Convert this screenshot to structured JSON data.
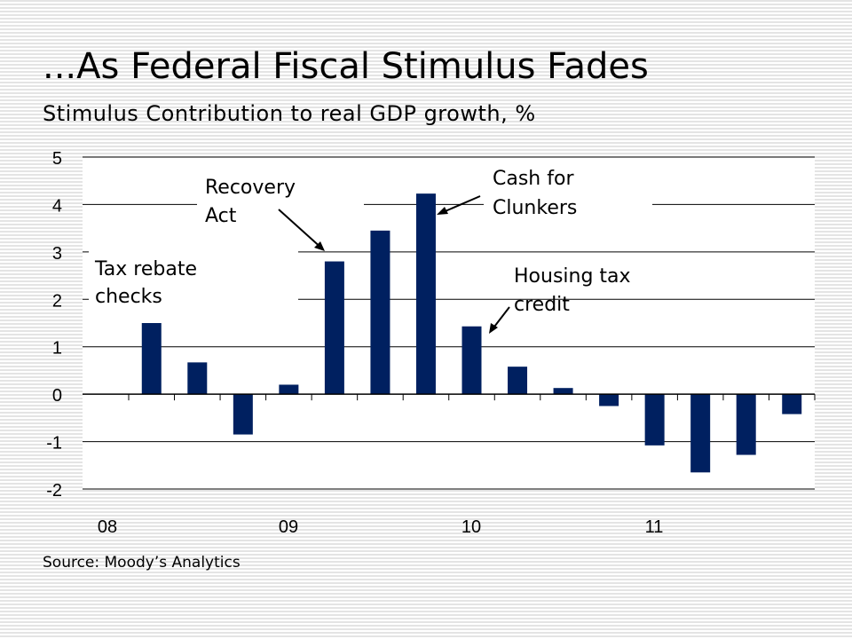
{
  "slide": {
    "title": "...As Federal Fiscal Stimulus Fades",
    "subtitle": "Stimulus Contribution to real GDP growth, %",
    "source": "Source: Moody’s Analytics"
  },
  "chart_data": {
    "type": "bar",
    "categories": [
      "2008Q2",
      "2008Q3",
      "2008Q4",
      "2009Q1",
      "2009Q2",
      "2009Q3",
      "2009Q4",
      "2010Q1",
      "2010Q2",
      "2010Q3",
      "2010Q4",
      "2011Q1",
      "2011Q2",
      "2011Q3",
      "2011Q4"
    ],
    "values": [
      1.5,
      0.67,
      -0.85,
      0.2,
      2.8,
      3.45,
      4.23,
      1.43,
      0.58,
      0.13,
      -0.25,
      -1.08,
      -1.65,
      -1.28,
      -0.42
    ],
    "x_tick_labels": [
      "08",
      "09",
      "10",
      "11"
    ],
    "y_ticks": [
      -2,
      -1,
      0,
      1,
      2,
      3,
      4,
      5
    ],
    "ylim": [
      -2,
      5
    ],
    "bar_color": "#002060",
    "grid": true,
    "annotations": [
      {
        "label_lines": [
          "Tax rebate",
          "checks"
        ]
      },
      {
        "label_lines": [
          "Recovery",
          "Act"
        ]
      },
      {
        "label_lines": [
          "Cash for",
          "Clunkers"
        ]
      },
      {
        "label_lines": [
          "Housing tax",
          "credit"
        ]
      }
    ]
  }
}
